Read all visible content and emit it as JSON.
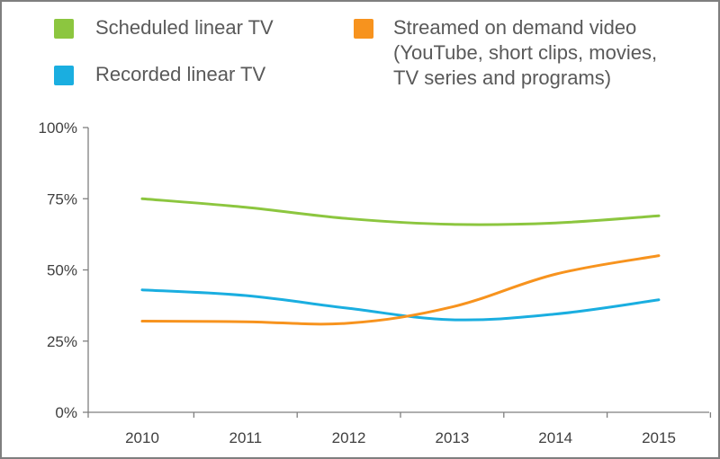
{
  "chart_data": {
    "type": "line",
    "title": "",
    "xlabel": "",
    "ylabel": "",
    "categories": [
      "2010",
      "2011",
      "2012",
      "2013",
      "2014",
      "2015"
    ],
    "ylim": [
      0,
      100
    ],
    "y_ticks": [
      0,
      25,
      50,
      75,
      100
    ],
    "y_tick_labels": [
      "0%",
      "25%",
      "50%",
      "75%",
      "100%"
    ],
    "grid": false,
    "legend_position": "top",
    "series": [
      {
        "name": "Scheduled linear TV",
        "legend_lines": [
          "Scheduled linear TV"
        ],
        "color": "#8cc63f",
        "values": [
          75,
          72,
          68,
          66,
          66.5,
          69
        ]
      },
      {
        "name": "Recorded linear TV",
        "legend_lines": [
          "Recorded linear TV"
        ],
        "color": "#1aaee0",
        "values": [
          43,
          41,
          36.5,
          32.5,
          34.5,
          39.5
        ]
      },
      {
        "name": "Streamed on demand video (YouTube, short clips, movies, TV series and programs)",
        "legend_lines": [
          "Streamed on demand video",
          "(YouTube,  short clips, movies,",
          "TV series and programs)"
        ],
        "color": "#f7931e",
        "values": [
          32,
          31.8,
          31.3,
          37,
          48.5,
          55
        ]
      }
    ]
  }
}
